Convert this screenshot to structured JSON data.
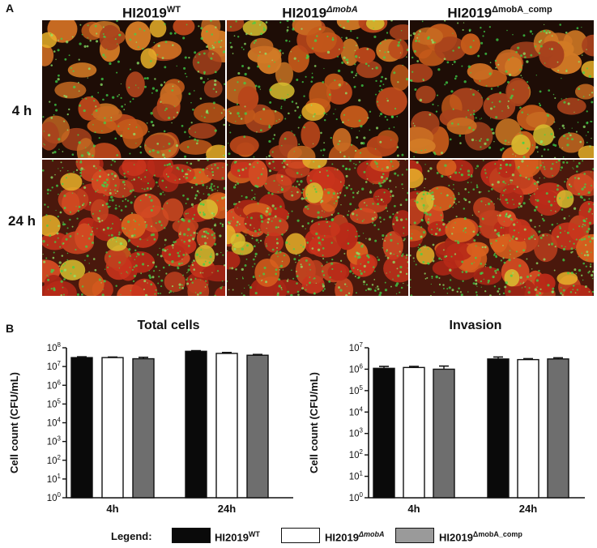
{
  "panelA": {
    "letter": "A",
    "columns": [
      {
        "base": "HI2019",
        "sup": "WT"
      },
      {
        "base": "HI2019",
        "sup": "ΔmobA"
      },
      {
        "base": "HI2019",
        "sup": "ΔmobA_comp"
      }
    ],
    "rows": [
      "4 h",
      "24 h"
    ]
  },
  "panelB": {
    "letter": "B",
    "legend": {
      "label": "Legend:",
      "items": [
        {
          "base": "HI2019",
          "sup": "WT",
          "color": "#0a0a0a"
        },
        {
          "base": "HI2019",
          "sup": "ΔmobA",
          "color": "#ffffff"
        },
        {
          "base": "HI2019",
          "sup": "ΔmobA_comp",
          "color": "#9a9a9a"
        }
      ]
    }
  },
  "chart_data": [
    {
      "type": "bar",
      "title": "Total cells",
      "ylabel": "Cell count (CFU/mL)",
      "yscale": "log",
      "ylim": [
        1,
        100000000
      ],
      "ytick_exponents": [
        "0",
        "1",
        "2",
        "3",
        "4",
        "5",
        "6",
        "7",
        "8"
      ],
      "ytick_base": "10",
      "categories": [
        "4h",
        "24h"
      ],
      "series": [
        {
          "name": "HI2019WT",
          "color": "#0a0a0a",
          "values": [
            30000000,
            65000000
          ],
          "errors": [
            3000000,
            5000000
          ]
        },
        {
          "name": "HI2019ΔmobA",
          "color": "#ffffff",
          "values": [
            30000000,
            50000000
          ],
          "errors": [
            2000000,
            6000000
          ]
        },
        {
          "name": "HI2019ΔmobA_comp",
          "color": "#6e6e6e",
          "values": [
            26000000,
            40000000
          ],
          "errors": [
            5000000,
            4000000
          ]
        }
      ]
    },
    {
      "type": "bar",
      "title": "Invasion",
      "ylabel": "Cell count (CFU/mL)",
      "yscale": "log",
      "ylim": [
        1,
        10000000
      ],
      "ytick_exponents": [
        "0",
        "1",
        "2",
        "3",
        "4",
        "5",
        "6",
        "7"
      ],
      "ytick_base": "10",
      "categories": [
        "4h",
        "24h"
      ],
      "series": [
        {
          "name": "HI2019WT",
          "color": "#0a0a0a",
          "values": [
            1100000,
            3000000
          ],
          "errors": [
            250000,
            700000
          ]
        },
        {
          "name": "HI2019ΔmobA",
          "color": "#ffffff",
          "values": [
            1200000,
            2800000
          ],
          "errors": [
            150000,
            300000
          ]
        },
        {
          "name": "HI2019ΔmobA_comp",
          "color": "#6e6e6e",
          "values": [
            1000000,
            3000000
          ],
          "errors": [
            400000,
            400000
          ]
        }
      ]
    }
  ]
}
